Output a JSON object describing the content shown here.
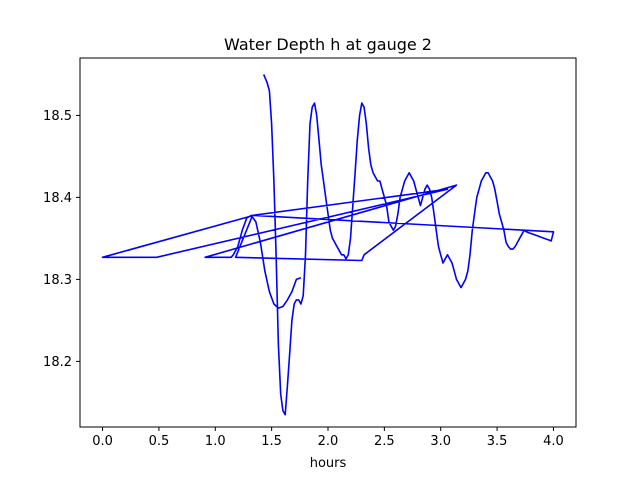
{
  "chart_data": {
    "type": "line",
    "title": "Water Depth h at gauge 2",
    "xlabel": "hours",
    "ylabel": "",
    "xlim": [
      -0.2,
      4.2
    ],
    "ylim": [
      18.12,
      18.57
    ],
    "xticks": [
      0.0,
      0.5,
      1.0,
      1.5,
      2.0,
      2.5,
      3.0,
      3.5,
      4.0
    ],
    "xtick_labels": [
      "0.0",
      "0.5",
      "1.0",
      "1.5",
      "2.0",
      "2.5",
      "3.0",
      "3.5",
      "4.0"
    ],
    "yticks": [
      18.2,
      18.3,
      18.4,
      18.5
    ],
    "ytick_labels": [
      "18.2",
      "18.3",
      "18.4",
      "18.5"
    ],
    "grid": false,
    "series": [
      {
        "color": "#0000ff",
        "x": [
          1.43,
          1.46,
          1.48,
          1.5,
          1.52,
          1.54,
          1.56,
          1.58,
          1.6,
          1.62,
          1.64,
          1.66,
          1.68,
          1.7,
          1.72,
          1.74,
          1.76,
          1.78,
          1.8,
          1.82,
          1.84,
          1.86,
          1.88,
          1.9,
          1.92,
          1.94,
          1.96,
          1.98,
          2.0,
          2.02,
          2.04,
          2.06,
          2.08,
          2.1,
          2.12,
          2.14,
          2.16,
          2.18,
          2.2,
          2.22,
          2.24,
          2.26,
          2.28,
          2.3,
          2.32,
          2.34,
          2.36,
          2.38,
          2.4,
          2.42,
          2.44,
          2.46,
          2.48,
          2.5,
          2.52,
          2.54,
          2.56,
          2.58,
          2.6,
          2.62,
          2.64,
          2.66,
          2.68,
          2.7,
          2.72,
          2.74,
          2.76,
          2.78,
          2.8,
          2.82,
          2.84,
          2.86,
          2.88,
          2.9,
          2.92,
          2.94,
          2.96,
          2.98,
          3.0,
          3.02,
          3.04,
          3.06,
          3.08,
          3.1,
          3.12,
          3.14,
          3.16,
          3.18,
          3.2,
          3.22,
          3.24,
          3.26,
          3.28,
          3.3,
          3.32,
          3.34,
          3.36,
          3.38,
          3.4,
          3.42,
          3.44,
          3.46,
          3.48,
          3.5,
          3.52,
          3.54,
          3.56,
          3.58,
          3.6,
          3.62,
          3.64,
          3.66,
          3.68,
          3.7,
          3.72,
          3.74,
          3.76,
          3.78,
          3.8,
          3.82,
          3.84,
          3.86,
          3.88,
          3.9,
          3.92,
          3.94,
          3.96,
          3.98,
          4.0,
          1.34,
          0.0,
          0.48,
          3.06,
          1.33,
          1.18,
          2.3,
          2.32,
          3.14,
          0.91,
          1.14,
          1.16,
          1.2,
          1.24,
          1.28,
          1.32,
          1.36,
          1.4,
          1.44,
          1.48,
          1.52,
          1.56,
          1.6,
          1.64,
          1.68,
          1.72,
          1.76
        ],
        "y": [
          18.55,
          18.54,
          18.53,
          18.49,
          18.42,
          18.33,
          18.22,
          18.16,
          18.14,
          18.135,
          18.17,
          18.21,
          18.25,
          18.27,
          18.275,
          18.275,
          18.27,
          18.28,
          18.33,
          18.42,
          18.49,
          18.51,
          18.515,
          18.5,
          18.47,
          18.44,
          18.42,
          18.4,
          18.38,
          18.36,
          18.35,
          18.345,
          18.34,
          18.335,
          18.33,
          18.33,
          18.325,
          18.33,
          18.35,
          18.39,
          18.43,
          18.47,
          18.5,
          18.515,
          18.51,
          18.49,
          18.46,
          18.44,
          18.43,
          18.425,
          18.42,
          18.42,
          18.41,
          18.4,
          18.39,
          18.37,
          18.365,
          18.36,
          18.365,
          18.38,
          18.4,
          18.41,
          18.42,
          18.425,
          18.43,
          18.425,
          18.42,
          18.41,
          18.4,
          18.39,
          18.4,
          18.41,
          18.415,
          18.41,
          18.4,
          18.38,
          18.36,
          18.34,
          18.33,
          18.32,
          18.325,
          18.33,
          18.325,
          18.32,
          18.31,
          18.3,
          18.295,
          18.29,
          18.295,
          18.3,
          18.31,
          18.33,
          18.36,
          18.38,
          18.4,
          18.41,
          18.42,
          18.425,
          18.43,
          18.43,
          18.425,
          18.42,
          18.41,
          18.395,
          18.38,
          18.37,
          18.36,
          18.345,
          18.34,
          18.337,
          18.337,
          18.34,
          18.345,
          18.35,
          18.355,
          18.36,
          18.358,
          18.357,
          18.356,
          18.355,
          18.354,
          18.353,
          18.352,
          18.351,
          18.35,
          18.349,
          18.348,
          18.347,
          18.358,
          18.378,
          18.327,
          18.327,
          18.41,
          18.378,
          18.327,
          18.323,
          18.33,
          18.415,
          18.327,
          18.327,
          18.33,
          18.34,
          18.36,
          18.375,
          18.378,
          18.37,
          18.345,
          18.31,
          18.285,
          18.27,
          18.265,
          18.267,
          18.275,
          18.285,
          18.3,
          18.302
        ]
      }
    ]
  }
}
